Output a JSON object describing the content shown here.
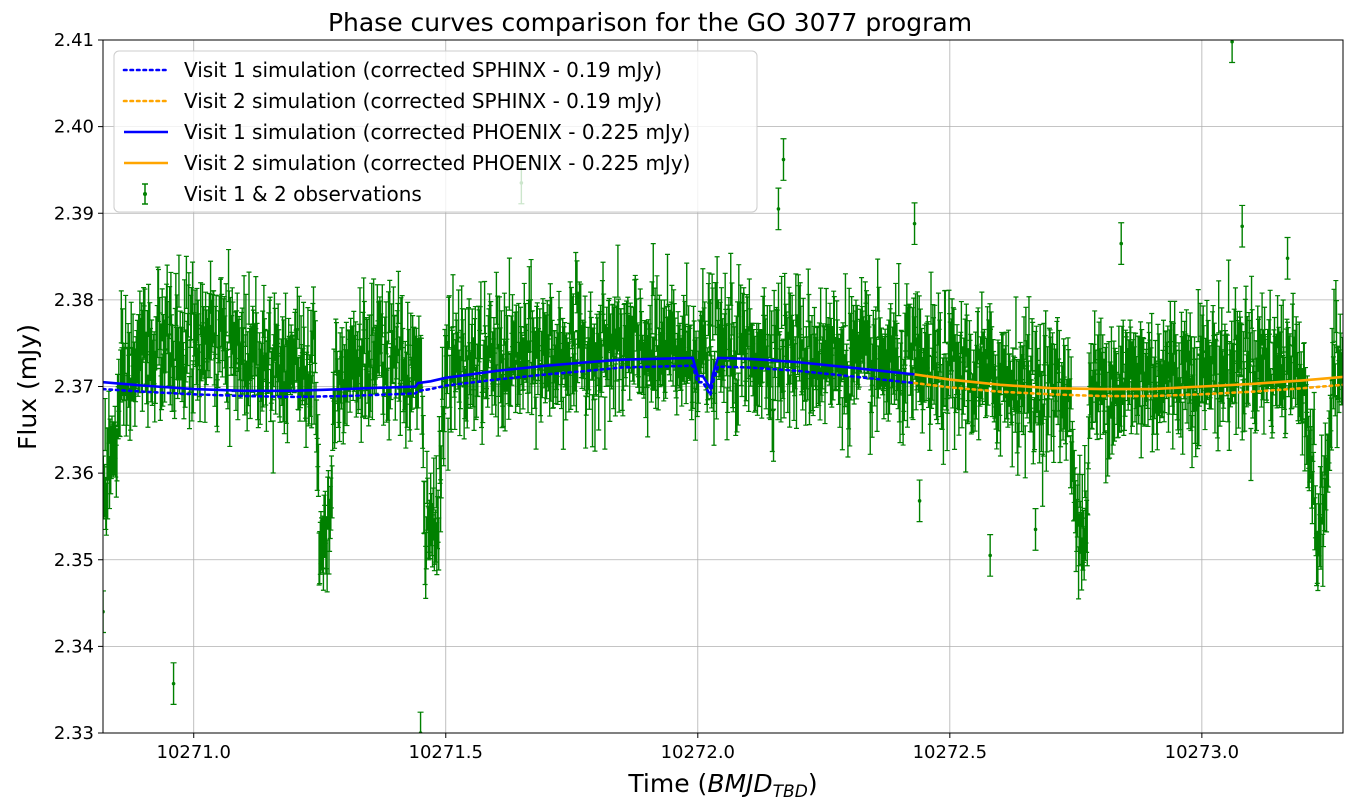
{
  "chart_data": {
    "type": "scatter",
    "title": "Phase curves comparison for the GO 3077 program",
    "xlabel": "Time (BMJD_TBD)",
    "xlabel_main": "Time (",
    "xlabel_italic": "BMJD",
    "xlabel_sub": "TBD",
    "xlabel_close": ")",
    "ylabel": "Flux (mJy)",
    "xlim": [
      10270.82,
      10273.28
    ],
    "ylim": [
      2.33,
      2.41
    ],
    "grid": true,
    "legend_placement": "top-left",
    "xticks": [
      {
        "value": 10271.0,
        "label": "10271.0"
      },
      {
        "value": 10271.5,
        "label": "10271.5"
      },
      {
        "value": 10272.0,
        "label": "10272.0"
      },
      {
        "value": 10272.5,
        "label": "10272.5"
      },
      {
        "value": 10273.0,
        "label": "10273.0"
      }
    ],
    "yticks": [
      {
        "value": 2.33,
        "label": "2.33"
      },
      {
        "value": 2.34,
        "label": "2.34"
      },
      {
        "value": 2.35,
        "label": "2.35"
      },
      {
        "value": 2.36,
        "label": "2.36"
      },
      {
        "value": 2.37,
        "label": "2.37"
      },
      {
        "value": 2.38,
        "label": "2.38"
      },
      {
        "value": 2.39,
        "label": "2.39"
      },
      {
        "value": 2.4,
        "label": "2.40"
      },
      {
        "value": 2.41,
        "label": "2.41"
      }
    ],
    "series": [
      {
        "name": "Visit 1 simulation (corrected SPHINX - 0.19 mJy)",
        "style": "dotted",
        "color": "#0000ff",
        "x": [
          10270.82,
          10270.9,
          10271.0,
          10271.1,
          10271.2,
          10271.3,
          10271.44,
          10271.445,
          10271.47,
          10271.5,
          10271.6,
          10271.7,
          10271.78,
          10271.85,
          10271.99,
          10272.0,
          10272.01,
          10272.025,
          10272.03,
          10272.04,
          10272.1,
          10272.2,
          10272.3,
          10272.43
        ],
        "y": [
          2.3697,
          2.3694,
          2.3691,
          2.3689,
          2.3688,
          2.3689,
          2.3692,
          2.3695,
          2.3697,
          2.3701,
          2.3708,
          2.3714,
          2.3718,
          2.3722,
          2.3724,
          2.3705,
          2.3705,
          2.369,
          2.3705,
          2.3723,
          2.3722,
          2.3718,
          2.3712,
          2.3704
        ]
      },
      {
        "name": "Visit 2 simulation (corrected SPHINX - 0.19 mJy)",
        "style": "dotted",
        "color": "#ffa500",
        "x": [
          10272.43,
          10272.5,
          10272.6,
          10272.7,
          10272.8,
          10272.9,
          10273.0,
          10273.1,
          10273.2,
          10273.28
        ],
        "y": [
          2.3704,
          2.3699,
          2.3694,
          2.3691,
          2.3689,
          2.3689,
          2.3691,
          2.3694,
          2.3698,
          2.3702
        ]
      },
      {
        "name": "Visit 1 simulation (corrected PHOENIX - 0.225 mJy)",
        "style": "solid",
        "color": "#0000ff",
        "x": [
          10270.82,
          10270.9,
          10271.0,
          10271.1,
          10271.2,
          10271.3,
          10271.44,
          10271.445,
          10271.47,
          10271.5,
          10271.6,
          10271.7,
          10271.78,
          10271.85,
          10271.99,
          10272.0,
          10272.01,
          10272.025,
          10272.03,
          10272.04,
          10272.1,
          10272.2,
          10272.3,
          10272.43
        ],
        "y": [
          2.3705,
          2.3701,
          2.3697,
          2.3695,
          2.3695,
          2.3697,
          2.37,
          2.3704,
          2.3706,
          2.371,
          2.3718,
          2.3724,
          2.3728,
          2.3731,
          2.3733,
          2.3712,
          2.3712,
          2.3698,
          2.3714,
          2.3733,
          2.3732,
          2.3728,
          2.3722,
          2.3714
        ]
      },
      {
        "name": "Visit 2 simulation (corrected PHOENIX - 0.225 mJy)",
        "style": "solid",
        "color": "#ffa500",
        "x": [
          10272.43,
          10272.5,
          10272.6,
          10272.7,
          10272.8,
          10272.9,
          10273.0,
          10273.1,
          10273.2,
          10273.28
        ],
        "y": [
          2.3714,
          2.3708,
          2.3702,
          2.3698,
          2.3697,
          2.3697,
          2.37,
          2.3703,
          2.3707,
          2.3711
        ]
      },
      {
        "name": "Visit 1 & 2 observations",
        "style": "errorbar",
        "color": "#008000",
        "baseline": {
          "x": [
            10270.82,
            10270.84,
            10270.86,
            10270.9,
            10271.0,
            10271.1,
            10271.2,
            10271.24,
            10271.25,
            10271.27,
            10271.28,
            10271.3,
            10271.4,
            10271.45,
            10271.46,
            10271.48,
            10271.5,
            10271.6,
            10271.8,
            10272.0,
            10272.2,
            10272.3,
            10272.43,
            10272.6,
            10272.74,
            10272.75,
            10272.77,
            10272.78,
            10272.9,
            10273.0,
            10273.1,
            10273.2,
            10273.23,
            10273.24,
            10273.26,
            10273.28
          ],
          "y": [
            2.36,
            2.362,
            2.37,
            2.374,
            2.375,
            2.374,
            2.373,
            2.372,
            2.353,
            2.354,
            2.371,
            2.373,
            2.373,
            2.371,
            2.353,
            2.354,
            2.372,
            2.373,
            2.374,
            2.374,
            2.374,
            2.373,
            2.372,
            2.371,
            2.369,
            2.353,
            2.354,
            2.37,
            2.371,
            2.372,
            2.373,
            2.372,
            2.353,
            2.354,
            2.371,
            2.372
          ]
        },
        "scatter_sigma": 0.0032,
        "error_half_width": 0.003,
        "sample_count": 2000,
        "outliers": [
          {
            "x": 10270.82,
            "y": 2.344
          },
          {
            "x": 10270.96,
            "y": 2.3357
          },
          {
            "x": 10271.45,
            "y": 2.33
          },
          {
            "x": 10271.65,
            "y": 2.3935
          },
          {
            "x": 10272.17,
            "y": 2.3962
          },
          {
            "x": 10272.16,
            "y": 2.3905
          },
          {
            "x": 10272.43,
            "y": 2.3888
          },
          {
            "x": 10272.44,
            "y": 2.3568
          },
          {
            "x": 10272.58,
            "y": 2.3505
          },
          {
            "x": 10272.67,
            "y": 2.3535
          },
          {
            "x": 10272.84,
            "y": 2.3865
          },
          {
            "x": 10273.06,
            "y": 2.4098
          },
          {
            "x": 10273.08,
            "y": 2.3885
          },
          {
            "x": 10273.17,
            "y": 2.3848
          }
        ]
      }
    ]
  }
}
